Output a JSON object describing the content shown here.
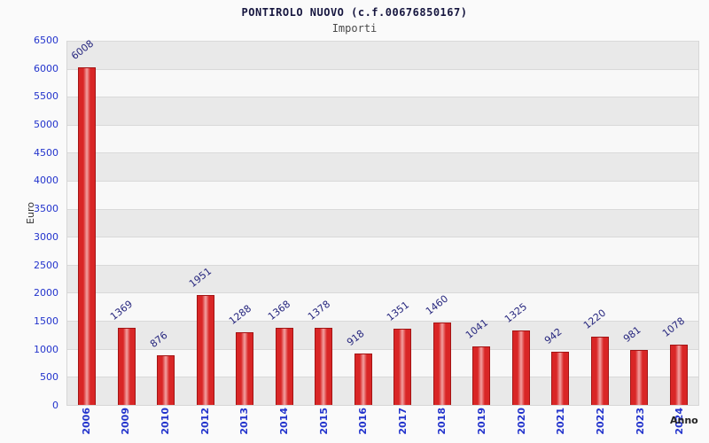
{
  "header": {
    "title": "PONTIROLO NUOVO (c.f.00676850167)",
    "subtitle": "Importi"
  },
  "chart_data": {
    "type": "bar",
    "title": "PONTIROLO NUOVO (c.f.00676850167)",
    "subtitle": "Importi",
    "xlabel": "Anno",
    "ylabel": "Euro",
    "ylim": [
      0,
      6500
    ],
    "y_tick_step": 500,
    "grid": true,
    "legend_position": "none",
    "categories": [
      "2006",
      "2009",
      "2010",
      "2012",
      "2013",
      "2014",
      "2015",
      "2016",
      "2017",
      "2018",
      "2019",
      "2020",
      "2021",
      "2022",
      "2023",
      "2024"
    ],
    "values": [
      6008,
      1369,
      876,
      1951,
      1288,
      1368,
      1378,
      918,
      1351,
      1460,
      1041,
      1325,
      942,
      1220,
      981,
      1078
    ],
    "colors": {
      "bar_edge": "#d92626",
      "bar_center": "#f2a2a2",
      "bar_border": "#a31414",
      "value_label": "#26267e",
      "tick_label": "#2233cc",
      "band_dark": "#e9e9e9",
      "band_light": "#f8f8f8",
      "title": "#16163f",
      "subtitle": "#4a4a4a"
    }
  }
}
